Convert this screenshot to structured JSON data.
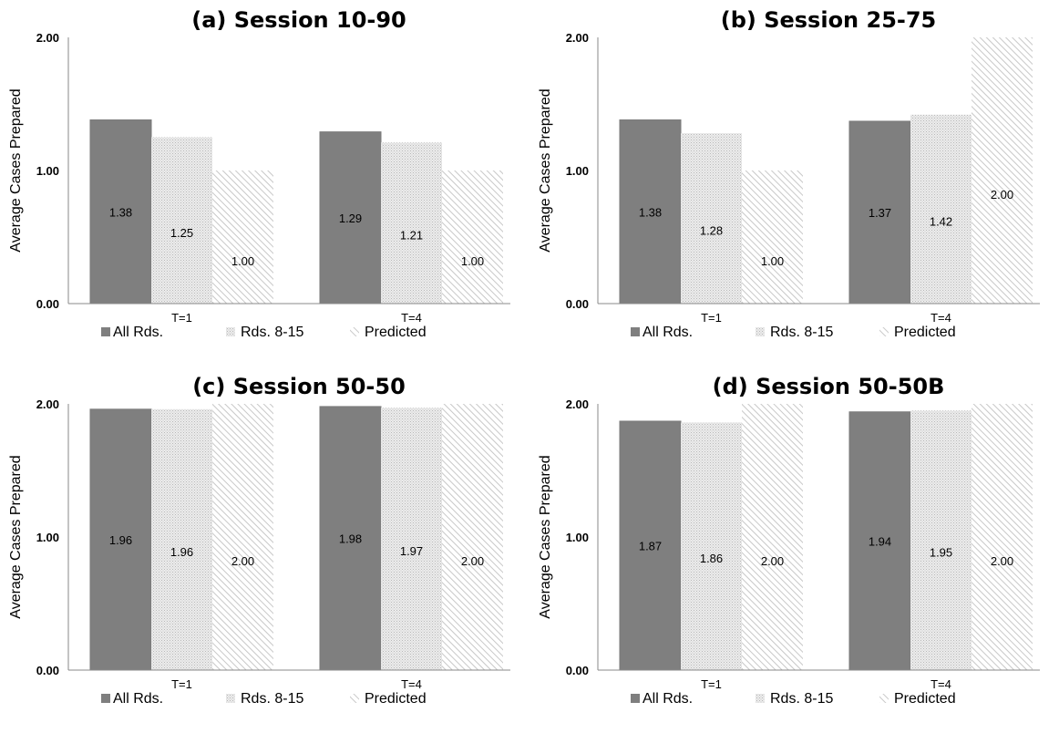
{
  "chart_data": [
    {
      "type": "bar",
      "title": "(a)  Session 10-90",
      "ylabel": "Average Cases Prepared",
      "categories": [
        "T=1",
        "T=4"
      ],
      "ylim": [
        0,
        2
      ],
      "yticks": [
        "0.00",
        "1.00",
        "2.00"
      ],
      "legend": "bottom",
      "series": [
        {
          "name": "All Rds.",
          "values": [
            1.38,
            1.29
          ],
          "labels": [
            "1.38",
            "1.29"
          ],
          "color": "#7f7f7f"
        },
        {
          "name": "Rds. 8-15",
          "values": [
            1.25,
            1.21
          ],
          "labels": [
            "1.25",
            "1.21"
          ],
          "color": "#d9d9d9"
        },
        {
          "name": "Predicted",
          "values": [
            1.0,
            1.0
          ],
          "labels": [
            "1.00",
            "1.00"
          ],
          "color": "#ededed"
        }
      ]
    },
    {
      "type": "bar",
      "title": "(b)  Session 25-75",
      "ylabel": "Average Cases Prepared",
      "categories": [
        "T=1",
        "T=4"
      ],
      "ylim": [
        0,
        2
      ],
      "yticks": [
        "0.00",
        "1.00",
        "2.00"
      ],
      "legend": "bottom",
      "series": [
        {
          "name": "All Rds.",
          "values": [
            1.38,
            1.37
          ],
          "labels": [
            "1.38",
            "1.37"
          ],
          "color": "#7f7f7f"
        },
        {
          "name": "Rds. 8-15",
          "values": [
            1.28,
            1.42
          ],
          "labels": [
            "1.28",
            "1.42"
          ],
          "color": "#d9d9d9"
        },
        {
          "name": "Predicted",
          "values": [
            1.0,
            2.0
          ],
          "labels": [
            "1.00",
            "2.00"
          ],
          "color": "#ededed"
        }
      ]
    },
    {
      "type": "bar",
      "title": "(c)  Session 50-50",
      "ylabel": "Average Cases Prepared",
      "categories": [
        "T=1",
        "T=4"
      ],
      "ylim": [
        0,
        2
      ],
      "yticks": [
        "0.00",
        "1.00",
        "2.00"
      ],
      "legend": "bottom",
      "series": [
        {
          "name": "All Rds.",
          "values": [
            1.96,
            1.98
          ],
          "labels": [
            "1.96",
            "1.98"
          ],
          "color": "#7f7f7f"
        },
        {
          "name": "Rds. 8-15",
          "values": [
            1.96,
            1.97
          ],
          "labels": [
            "1.96",
            "1.97"
          ],
          "color": "#d9d9d9"
        },
        {
          "name": "Predicted",
          "values": [
            2.0,
            2.0
          ],
          "labels": [
            "2.00",
            "2.00"
          ],
          "color": "#ededed"
        }
      ]
    },
    {
      "type": "bar",
      "title": "(d)  Session 50-50B",
      "ylabel": "Average Cases Prepared",
      "categories": [
        "T=1",
        "T=4"
      ],
      "ylim": [
        0,
        2
      ],
      "yticks": [
        "0.00",
        "1.00",
        "2.00"
      ],
      "legend": "bottom",
      "series": [
        {
          "name": "All Rds.",
          "values": [
            1.87,
            1.94
          ],
          "labels": [
            "1.87",
            "1.94"
          ],
          "color": "#7f7f7f"
        },
        {
          "name": "Rds. 8-15",
          "values": [
            1.86,
            1.95
          ],
          "labels": [
            "1.86",
            "1.95"
          ],
          "color": "#d9d9d9"
        },
        {
          "name": "Predicted",
          "values": [
            2.0,
            2.0
          ],
          "labels": [
            "2.00",
            "2.00"
          ],
          "color": "#ededed"
        }
      ]
    }
  ]
}
